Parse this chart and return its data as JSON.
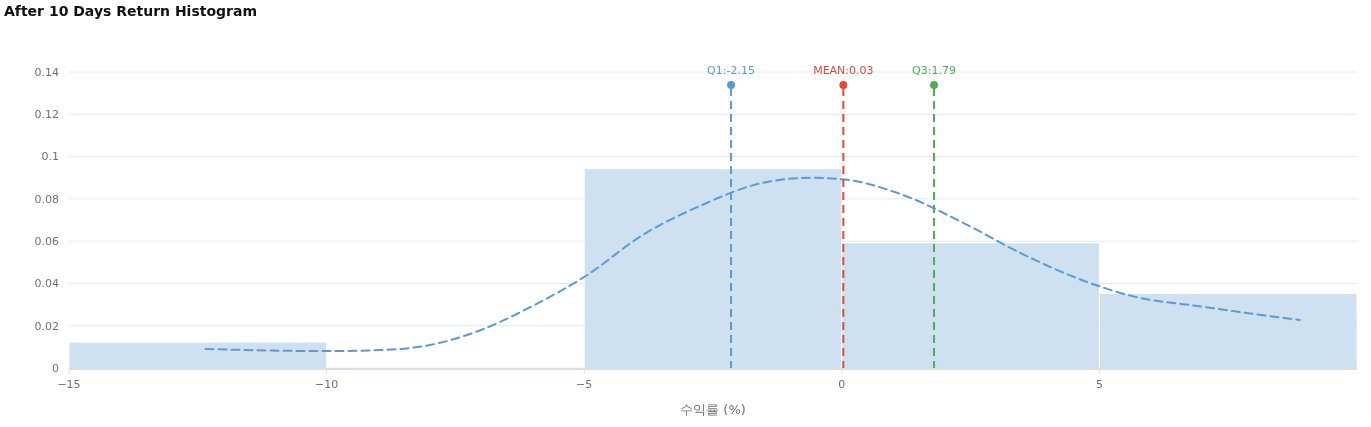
{
  "chart_data": {
    "type": "histogram",
    "title": "After 10 Days Return Histogram",
    "xlabel": "수익률 (%)",
    "bins": [
      -15,
      -10,
      -5,
      0,
      5,
      10
    ],
    "values": [
      0.012,
      0,
      0.094,
      0.059,
      0.035
    ],
    "color": "#cfe0f1",
    "series": [
      {
        "type": "line",
        "color": "#5b9bd5",
        "line_style": "dashed",
        "x": [
          -12.35,
          -10,
          -8.95,
          -7.97,
          -7.0,
          -6.03,
          -4.94,
          -3.89,
          -2.72,
          -1.55,
          -0.58,
          0.1,
          1.17,
          2.33,
          3.5,
          4.67,
          5.64,
          7.0,
          8.17,
          8.89
        ],
        "values": [
          0.009,
          0.008,
          0.0085,
          0.011,
          0.018,
          0.029,
          0.044,
          0.0625,
          0.077,
          0.0875,
          0.09,
          0.089,
          0.082,
          0.069,
          0.054,
          0.0415,
          0.034,
          0.029,
          0.025,
          0.0227
        ]
      }
    ],
    "xlim": [
      -15,
      10
    ],
    "xticks": [
      -15,
      -10,
      -5,
      0,
      5
    ],
    "ylim": [
      0,
      0.14
    ],
    "yticks": [
      0,
      0.02,
      0.04,
      0.06,
      0.08,
      0.1,
      0.12,
      0.14
    ],
    "grid": "y",
    "ref_lines": [
      {
        "axis": "x",
        "value": -2.15,
        "label": "Q1:-2.15",
        "color": "#5b9bd5",
        "line_style": "dashed"
      },
      {
        "axis": "x",
        "value": 0.03,
        "label": "MEAN:0.03",
        "color": "#dd4b39",
        "line_style": "dashed"
      },
      {
        "axis": "x",
        "value": 1.79,
        "label": "Q3:1.79",
        "color": "#4caf50",
        "line_style": "dashed"
      }
    ]
  }
}
